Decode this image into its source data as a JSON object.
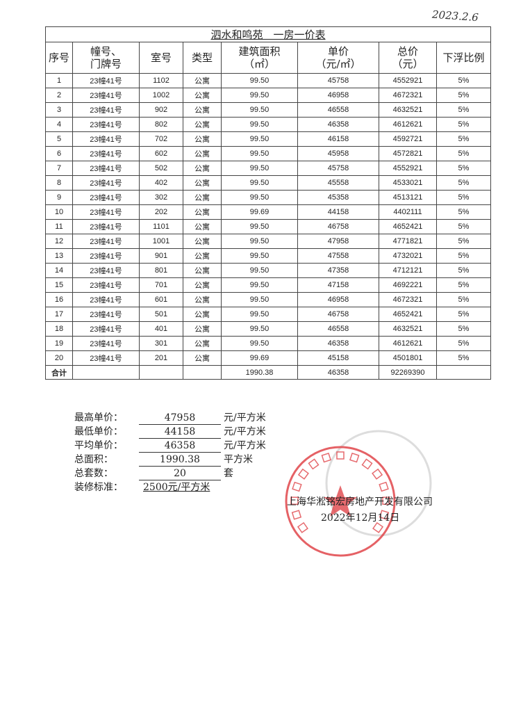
{
  "handwritten_date": "2023.2.6",
  "table": {
    "title": "泗水和鸣苑　一房一价表",
    "headers": [
      "序号",
      "幢号、\n门牌号",
      "室号",
      "类型",
      "建筑面积\n（㎡）",
      "单价\n（元/㎡）",
      "总价\n（元）",
      "下浮比例"
    ],
    "rows": [
      [
        "1",
        "23幢41号",
        "1102",
        "公寓",
        "99.50",
        "45758",
        "4552921",
        "5%"
      ],
      [
        "2",
        "23幢41号",
        "1002",
        "公寓",
        "99.50",
        "46958",
        "4672321",
        "5%"
      ],
      [
        "3",
        "23幢41号",
        "902",
        "公寓",
        "99.50",
        "46558",
        "4632521",
        "5%"
      ],
      [
        "4",
        "23幢41号",
        "802",
        "公寓",
        "99.50",
        "46358",
        "4612621",
        "5%"
      ],
      [
        "5",
        "23幢41号",
        "702",
        "公寓",
        "99.50",
        "46158",
        "4592721",
        "5%"
      ],
      [
        "6",
        "23幢41号",
        "602",
        "公寓",
        "99.50",
        "45958",
        "4572821",
        "5%"
      ],
      [
        "7",
        "23幢41号",
        "502",
        "公寓",
        "99.50",
        "45758",
        "4552921",
        "5%"
      ],
      [
        "8",
        "23幢41号",
        "402",
        "公寓",
        "99.50",
        "45558",
        "4533021",
        "5%"
      ],
      [
        "9",
        "23幢41号",
        "302",
        "公寓",
        "99.50",
        "45358",
        "4513121",
        "5%"
      ],
      [
        "10",
        "23幢41号",
        "202",
        "公寓",
        "99.69",
        "44158",
        "4402111",
        "5%"
      ],
      [
        "11",
        "23幢41号",
        "1101",
        "公寓",
        "99.50",
        "46758",
        "4652421",
        "5%"
      ],
      [
        "12",
        "23幢41号",
        "1001",
        "公寓",
        "99.50",
        "47958",
        "4771821",
        "5%"
      ],
      [
        "13",
        "23幢41号",
        "901",
        "公寓",
        "99.50",
        "47558",
        "4732021",
        "5%"
      ],
      [
        "14",
        "23幢41号",
        "801",
        "公寓",
        "99.50",
        "47358",
        "4712121",
        "5%"
      ],
      [
        "15",
        "23幢41号",
        "701",
        "公寓",
        "99.50",
        "47158",
        "4692221",
        "5%"
      ],
      [
        "16",
        "23幢41号",
        "601",
        "公寓",
        "99.50",
        "46958",
        "4672321",
        "5%"
      ],
      [
        "17",
        "23幢41号",
        "501",
        "公寓",
        "99.50",
        "46758",
        "4652421",
        "5%"
      ],
      [
        "18",
        "23幢41号",
        "401",
        "公寓",
        "99.50",
        "46558",
        "4632521",
        "5%"
      ],
      [
        "19",
        "23幢41号",
        "301",
        "公寓",
        "99.50",
        "46358",
        "4612621",
        "5%"
      ],
      [
        "20",
        "23幢41号",
        "201",
        "公寓",
        "99.69",
        "45158",
        "4501801",
        "5%"
      ]
    ],
    "total": {
      "label": "合计",
      "area": "1990.38",
      "unit_price": "46358",
      "total_price": "92269390"
    }
  },
  "summary": [
    {
      "label": "最高单价：",
      "value": "47958",
      "unit": "元/平方米"
    },
    {
      "label": "最低单价：",
      "value": "44158",
      "unit": "元/平方米"
    },
    {
      "label": "平均单价：",
      "value": "46358",
      "unit": "元/平方米"
    },
    {
      "label": "总面积：",
      "value": "1990.38",
      "unit": "平方米"
    },
    {
      "label": "总套数：",
      "value": "20",
      "unit": "套"
    },
    {
      "label": "装修标准：",
      "value": "2500元/平方米",
      "unit": ""
    }
  ],
  "company": "上海华淞铭宏房地产开发有限公司",
  "date": "2022年12月14日",
  "stamp_text": "上海华淞铭宏房地产开发有限公司",
  "colors": {
    "stamp": "#e0454a",
    "faint_stamp": "#c8c8c8"
  }
}
